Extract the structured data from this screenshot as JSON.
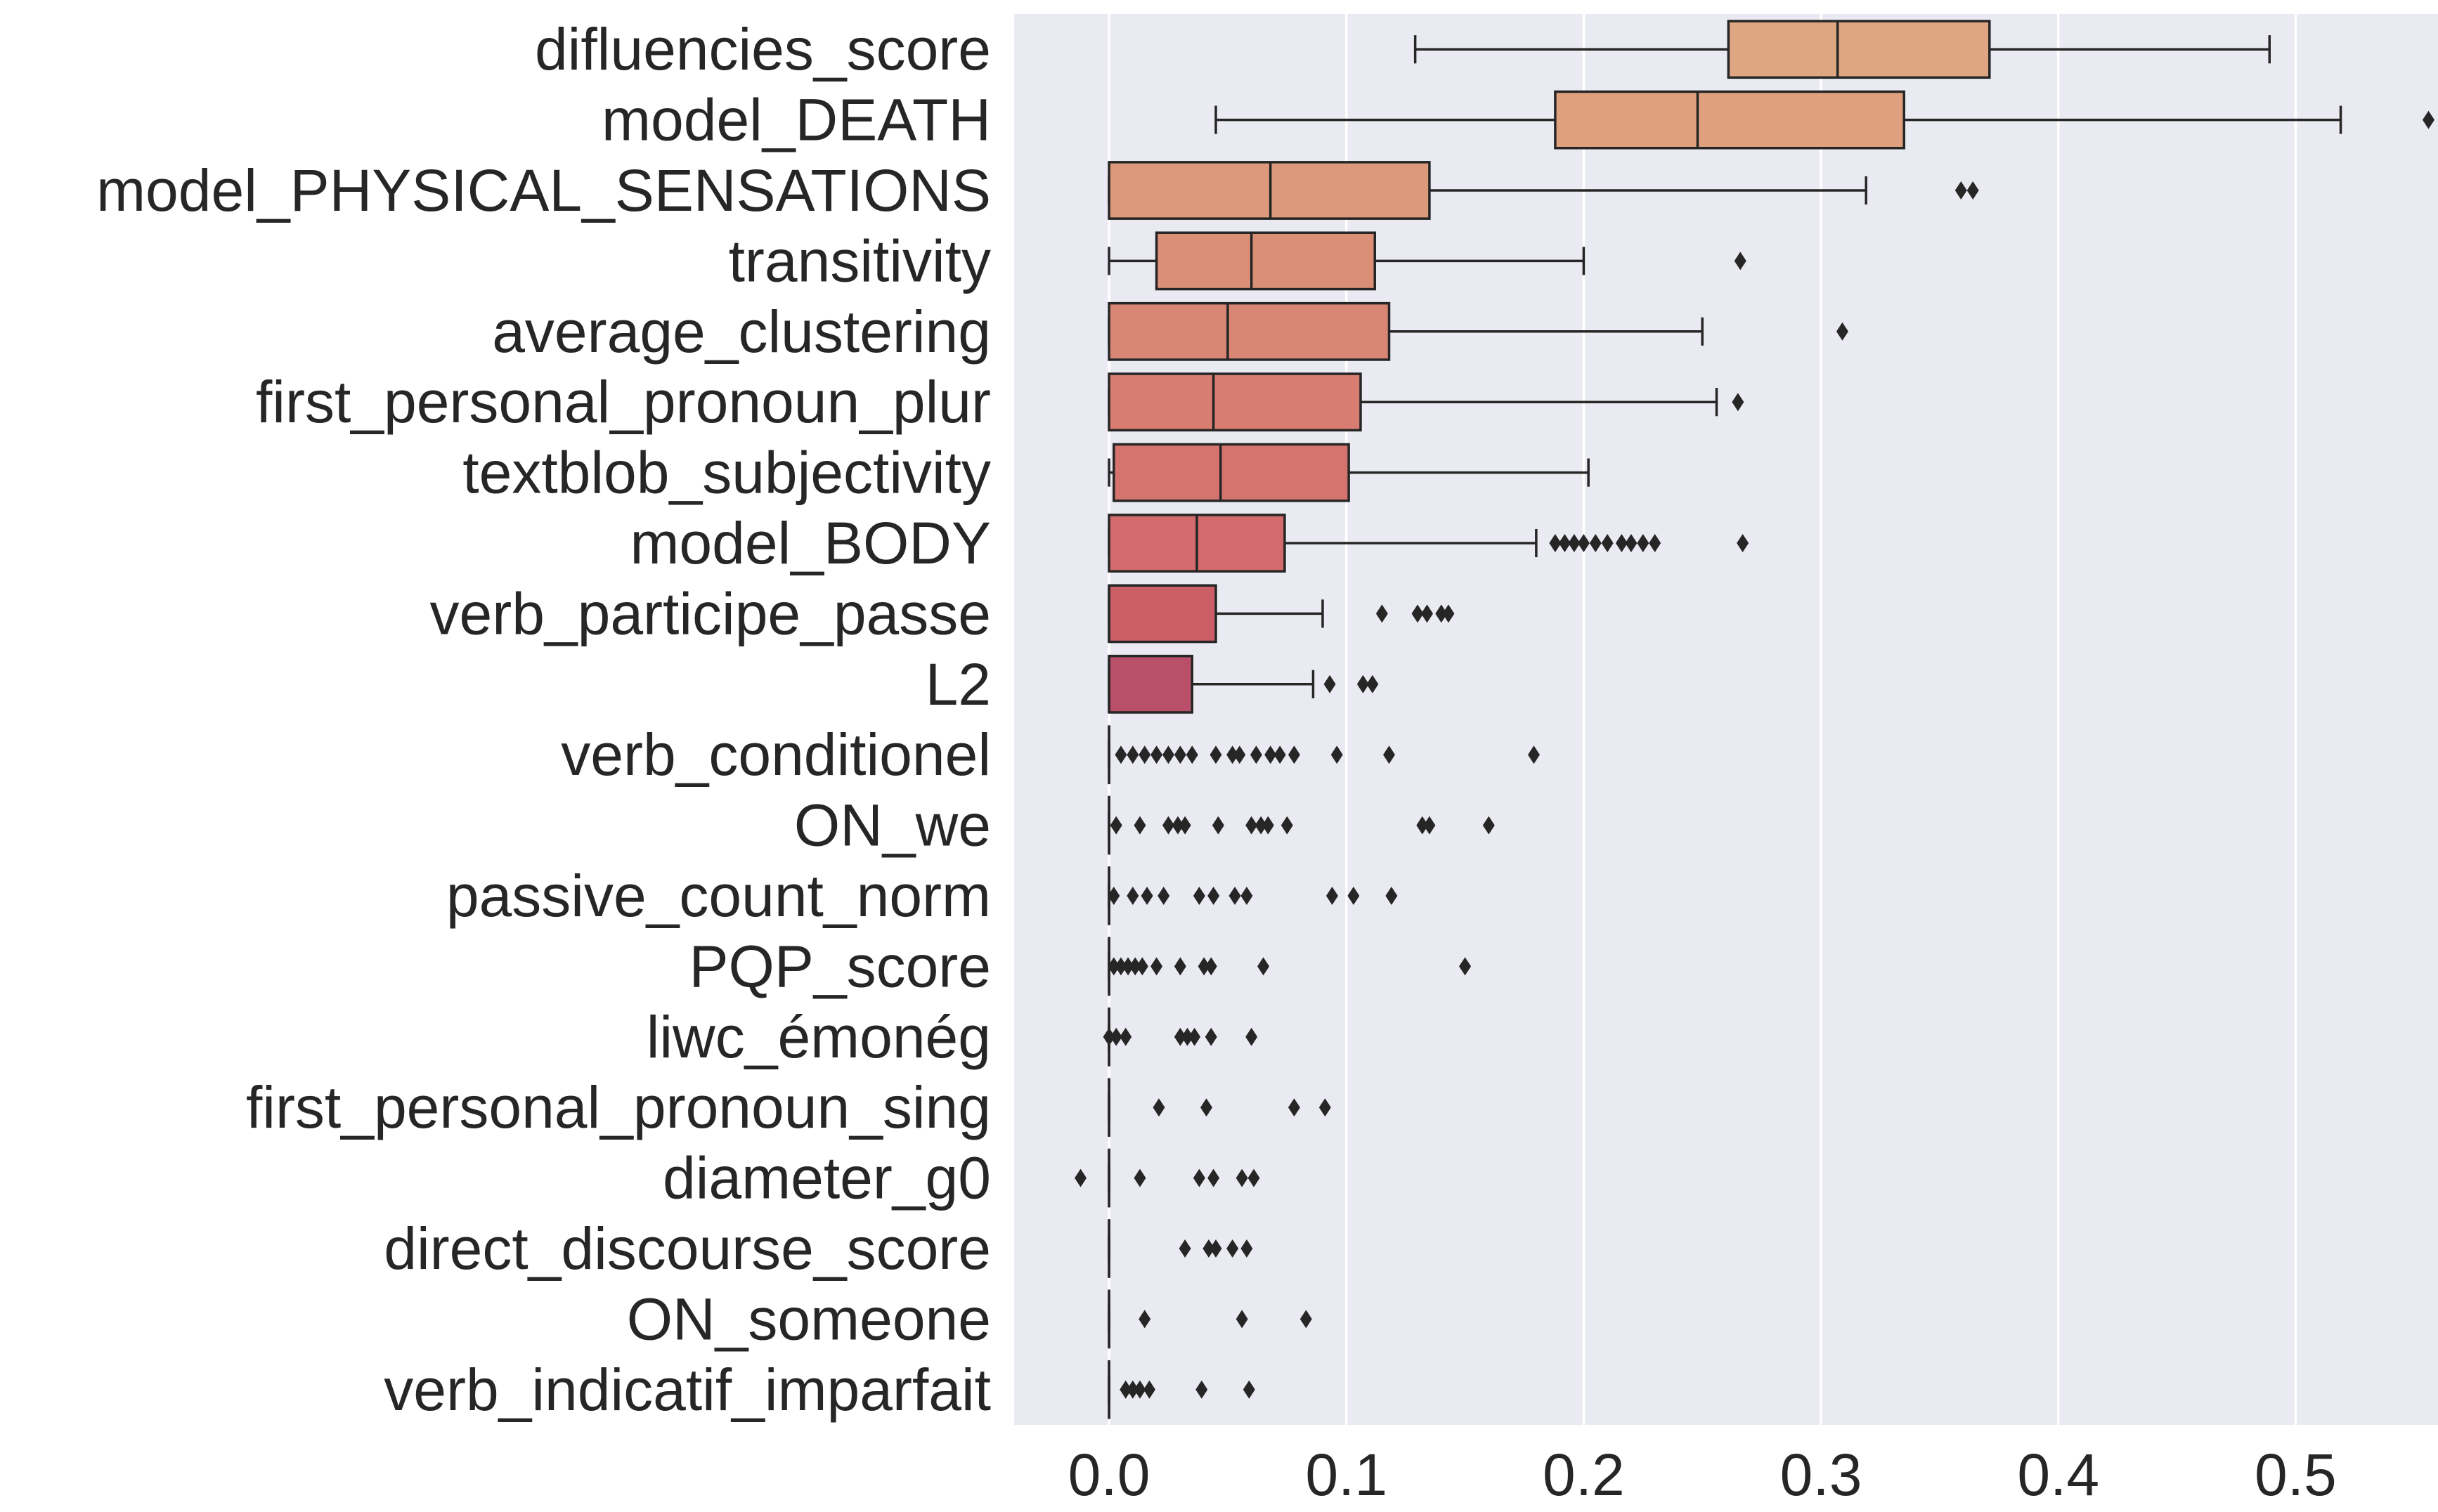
{
  "chart_data": {
    "type": "boxplot",
    "orientation": "horizontal",
    "title": "",
    "xlabel": "",
    "ylabel": "",
    "xlim": [
      -0.04,
      0.56
    ],
    "xticks": [
      0.0,
      0.1,
      0.2,
      0.3,
      0.4,
      0.5
    ],
    "xtick_labels": [
      "0.0",
      "0.1",
      "0.2",
      "0.3",
      "0.4",
      "0.5"
    ],
    "grid": true,
    "background_color": "#eaeaf2",
    "grid_color": "#ffffff",
    "line_color": "#262626",
    "categories": [
      {
        "name": "difluencies_score",
        "color": "#dfa683",
        "box": {
          "min": 0.129,
          "q1": 0.261,
          "median": 0.307,
          "q3": 0.371,
          "max": 0.489
        },
        "outliers": []
      },
      {
        "name": "model_DEATH",
        "color": "#dea07f",
        "box": {
          "min": 0.045,
          "q1": 0.188,
          "median": 0.248,
          "q3": 0.335,
          "max": 0.519
        },
        "outliers": [
          0.556
        ]
      },
      {
        "name": "model_PHYSICAL_SENSATIONS",
        "color": "#dc997b",
        "box": {
          "min": 0.0,
          "q1": 0.0,
          "median": 0.068,
          "q3": 0.135,
          "max": 0.319
        },
        "outliers": [
          0.359,
          0.364
        ]
      },
      {
        "name": "transitivity",
        "color": "#da9077",
        "box": {
          "min": 0.0,
          "q1": 0.02,
          "median": 0.06,
          "q3": 0.112,
          "max": 0.2
        },
        "outliers": [
          0.266
        ]
      },
      {
        "name": "average_clustering",
        "color": "#d98674",
        "box": {
          "min": 0.0,
          "q1": 0.0,
          "median": 0.05,
          "q3": 0.118,
          "max": 0.25
        },
        "outliers": [
          0.309
        ]
      },
      {
        "name": "first_personal_pronoun_plur",
        "color": "#d77d71",
        "box": {
          "min": 0.0,
          "q1": 0.0,
          "median": 0.044,
          "q3": 0.106,
          "max": 0.256
        },
        "outliers": [
          0.265
        ]
      },
      {
        "name": "textblob_subjectivity",
        "color": "#d5746e",
        "box": {
          "min": 0.0,
          "q1": 0.002,
          "median": 0.047,
          "q3": 0.101,
          "max": 0.202
        },
        "outliers": []
      },
      {
        "name": "model_BODY",
        "color": "#d36a6b",
        "box": {
          "min": 0.0,
          "q1": 0.0,
          "median": 0.037,
          "q3": 0.074,
          "max": 0.18
        },
        "outliers": [
          0.188,
          0.192,
          0.196,
          0.2,
          0.205,
          0.21,
          0.216,
          0.22,
          0.225,
          0.23,
          0.267
        ]
      },
      {
        "name": "verb_participe_passe",
        "color": "#cb5f67",
        "box": {
          "min": 0.0,
          "q1": 0.0,
          "median": 0.0,
          "q3": 0.045,
          "max": 0.09
        },
        "outliers": [
          0.115,
          0.13,
          0.134,
          0.14,
          0.143
        ]
      },
      {
        "name": "L2",
        "color": "#b94f68",
        "box": {
          "min": 0.0,
          "q1": 0.0,
          "median": 0.0,
          "q3": 0.035,
          "max": 0.086
        },
        "outliers": [
          0.093,
          0.107,
          0.111
        ]
      },
      {
        "name": "verb_conditionel",
        "color": "#be5b6b",
        "box": {
          "min": 0.0,
          "q1": 0.0,
          "median": 0.0,
          "q3": 0.0,
          "max": 0.0
        },
        "outliers": [
          0.005,
          0.01,
          0.015,
          0.02,
          0.025,
          0.03,
          0.035,
          0.045,
          0.052,
          0.055,
          0.062,
          0.068,
          0.072,
          0.078,
          0.096,
          0.118,
          0.179
        ]
      },
      {
        "name": "ON_we",
        "color": "#be5b6b",
        "box": {
          "min": 0.0,
          "q1": 0.0,
          "median": 0.0,
          "q3": 0.0,
          "max": 0.0
        },
        "outliers": [
          0.003,
          0.013,
          0.025,
          0.029,
          0.032,
          0.046,
          0.06,
          0.064,
          0.067,
          0.075,
          0.132,
          0.135,
          0.16
        ]
      },
      {
        "name": "passive_count_norm",
        "color": "#be5b6b",
        "box": {
          "min": 0.0,
          "q1": 0.0,
          "median": 0.0,
          "q3": 0.0,
          "max": 0.0
        },
        "outliers": [
          0.002,
          0.01,
          0.016,
          0.023,
          0.038,
          0.044,
          0.053,
          0.058,
          0.094,
          0.103,
          0.119
        ]
      },
      {
        "name": "PQP_score",
        "color": "#be5b6b",
        "box": {
          "min": 0.0,
          "q1": 0.0,
          "median": 0.0,
          "q3": 0.0,
          "max": 0.0
        },
        "outliers": [
          0.002,
          0.005,
          0.008,
          0.011,
          0.014,
          0.02,
          0.03,
          0.04,
          0.043,
          0.065,
          0.15
        ]
      },
      {
        "name": "liwc_émonég",
        "color": "#be5b6b",
        "box": {
          "min": 0.0,
          "q1": 0.0,
          "median": 0.0,
          "q3": 0.0,
          "max": 0.0
        },
        "outliers": [
          0.0,
          0.003,
          0.007,
          0.03,
          0.033,
          0.036,
          0.043,
          0.06
        ]
      },
      {
        "name": "first_personal_pronoun_sing",
        "color": "#be5b6b",
        "box": {
          "min": 0.0,
          "q1": 0.0,
          "median": 0.0,
          "q3": 0.0,
          "max": 0.0
        },
        "outliers": [
          0.021,
          0.041,
          0.078,
          0.091
        ]
      },
      {
        "name": "diameter_g0",
        "color": "#be5b6b",
        "box": {
          "min": 0.0,
          "q1": 0.0,
          "median": 0.0,
          "q3": 0.0,
          "max": 0.0
        },
        "outliers": [
          -0.012,
          0.013,
          0.038,
          0.044,
          0.056,
          0.061
        ]
      },
      {
        "name": "direct_discourse_score",
        "color": "#be5b6b",
        "box": {
          "min": 0.0,
          "q1": 0.0,
          "median": 0.0,
          "q3": 0.0,
          "max": 0.0
        },
        "outliers": [
          0.032,
          0.042,
          0.045,
          0.052,
          0.058
        ]
      },
      {
        "name": "ON_someone",
        "color": "#be5b6b",
        "box": {
          "min": 0.0,
          "q1": 0.0,
          "median": 0.0,
          "q3": 0.0,
          "max": 0.0
        },
        "outliers": [
          0.015,
          0.056,
          0.083
        ]
      },
      {
        "name": "verb_indicatif_imparfait",
        "color": "#be5b6b",
        "box": {
          "min": 0.0,
          "q1": 0.0,
          "median": 0.0,
          "q3": 0.0,
          "max": 0.0
        },
        "outliers": [
          0.007,
          0.01,
          0.013,
          0.017,
          0.039,
          0.059
        ]
      }
    ]
  }
}
